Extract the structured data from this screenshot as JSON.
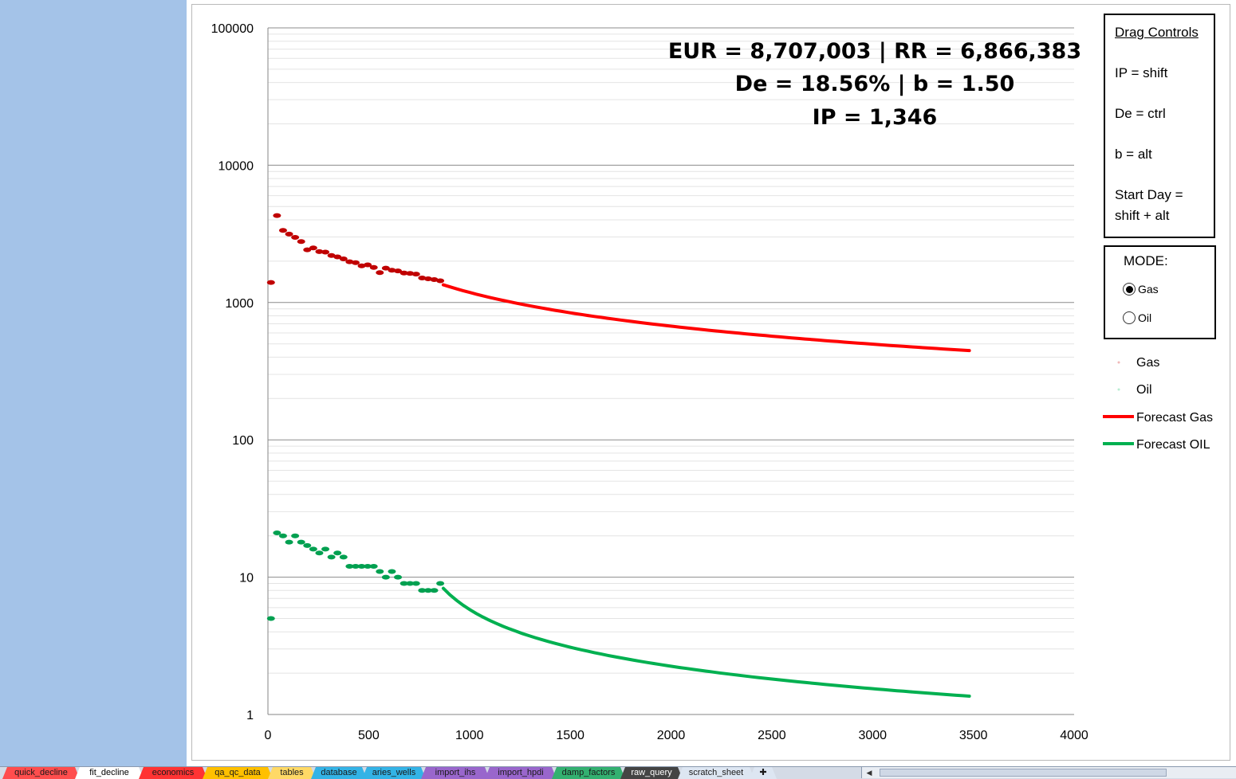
{
  "chart_data": {
    "type": "scatter",
    "title": "",
    "xlabel": "",
    "ylabel": "",
    "xlim": [
      0,
      4000
    ],
    "ylim": [
      1,
      100000
    ],
    "y_scale": "log",
    "x_ticks": [
      "0",
      "500",
      "1000",
      "1500",
      "2000",
      "2500",
      "3000",
      "3500",
      "4000"
    ],
    "y_ticks": [
      "1",
      "10",
      "100",
      "1000",
      "10000",
      "100000"
    ],
    "grid": "horizontal major and minor",
    "legend_position": "right",
    "stats": {
      "line1": "EUR = 8,707,003  | RR = 6,866,383",
      "line2": "De = 18.56%  | b = 1.50",
      "line3": "IP = 1,346"
    },
    "series": [
      {
        "name": "Gas",
        "kind": "points",
        "color": "#c00000",
        "x": [
          15,
          45,
          75,
          105,
          135,
          165,
          195,
          225,
          255,
          285,
          315,
          345,
          375,
          405,
          435,
          465,
          495,
          525,
          555,
          585,
          615,
          645,
          675,
          705,
          735,
          765,
          795,
          825,
          855
        ],
        "y": [
          1400,
          4300,
          3350,
          3150,
          2980,
          2780,
          2420,
          2500,
          2350,
          2330,
          2200,
          2150,
          2080,
          1980,
          1950,
          1850,
          1880,
          1800,
          1650,
          1780,
          1720,
          1700,
          1640,
          1630,
          1610,
          1510,
          1490,
          1470,
          1440
        ]
      },
      {
        "name": "Oil",
        "kind": "points",
        "color": "#00a050",
        "x": [
          15,
          45,
          75,
          105,
          135,
          165,
          195,
          225,
          255,
          285,
          315,
          345,
          375,
          405,
          435,
          465,
          495,
          525,
          555,
          585,
          615,
          645,
          675,
          705,
          735,
          765,
          795,
          825,
          855
        ],
        "y": [
          5,
          21,
          20,
          18,
          20,
          18,
          17,
          16,
          15,
          16,
          14,
          15,
          14,
          12,
          12,
          12,
          12,
          12,
          11,
          10,
          11,
          10,
          9,
          9,
          9,
          8,
          8,
          8,
          9
        ]
      },
      {
        "name": "Forecast Gas",
        "kind": "line",
        "color": "#ff0000",
        "qi": 1346,
        "di": 0.00108,
        "b": 1.5,
        "x_start": 870,
        "x_end": 3480
      },
      {
        "name": "Forecast OIL",
        "kind": "line",
        "color": "#00b050",
        "qi": 8.3,
        "di": 0.0036,
        "b": 1.5,
        "x_start": 870,
        "x_end": 3480
      }
    ]
  },
  "controls": {
    "title": "Drag Controls",
    "ip": "IP = shift",
    "de": "De = ctrl",
    "b": "b = alt",
    "start_day_1": "Start Day =",
    "start_day_2": "shift + alt"
  },
  "mode": {
    "title": "MODE:",
    "options": [
      "Gas",
      "Oil"
    ],
    "selected": "Gas"
  },
  "legend": [
    "Gas",
    "Oil",
    "Forecast Gas",
    "Forecast OIL"
  ],
  "tabs": [
    {
      "label": "quick_decline",
      "color": "#ff4d4d"
    },
    {
      "label": "fit_decline",
      "color": "#ffffff",
      "active": true
    },
    {
      "label": "economics",
      "color": "#ff3333"
    },
    {
      "label": "qa_qc_data",
      "color": "#ffc000"
    },
    {
      "label": "tables",
      "color": "#ffd966"
    },
    {
      "label": "database",
      "color": "#33b3e6"
    },
    {
      "label": "aries_wells",
      "color": "#33b3e6"
    },
    {
      "label": "import_ihs",
      "color": "#9966cc"
    },
    {
      "label": "import_hpdi",
      "color": "#9966cc"
    },
    {
      "label": "damp_factors",
      "color": "#33b070"
    },
    {
      "label": "raw_query",
      "color": "#444444"
    },
    {
      "label": "scratch_sheet",
      "color": "#dde6f2"
    }
  ]
}
